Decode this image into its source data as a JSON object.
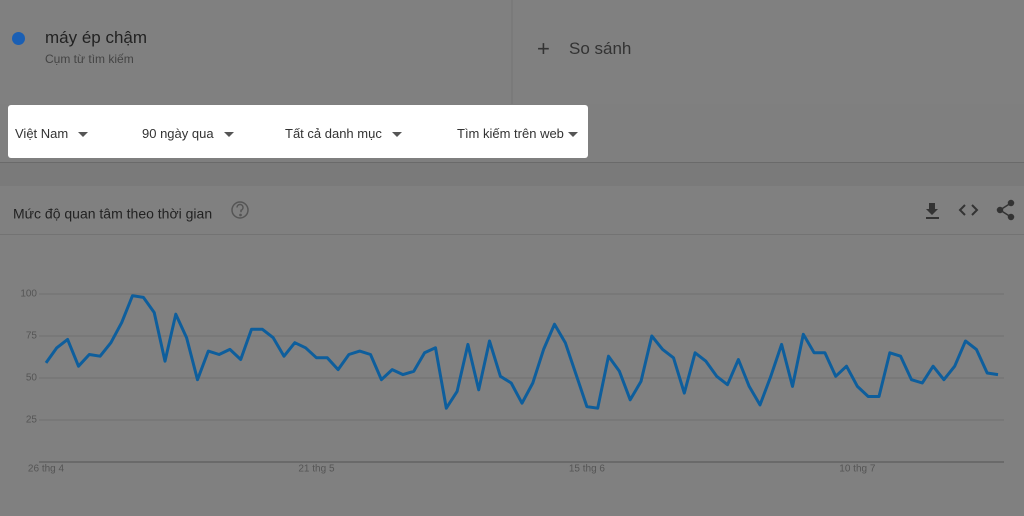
{
  "search": {
    "subtitle": "Cụm từ tìm kiếm",
    "compare": "So sánh"
  },
  "filters": [
    "Việt Nam",
    "90 ngày qua",
    "Tất cả danh mục",
    "Tìm kiếm trên web"
  ],
  "chart_data": {
    "type": "line",
    "title": "Mức độ quan tâm theo thời gian",
    "categories": [
      "26 thg 4",
      null,
      null,
      null,
      null,
      null,
      null,
      null,
      null,
      null,
      null,
      null,
      null,
      null,
      null,
      null,
      null,
      null,
      null,
      null,
      null,
      null,
      null,
      null,
      null,
      "21 thg 5",
      null,
      null,
      null,
      null,
      null,
      null,
      null,
      null,
      null,
      null,
      null,
      null,
      null,
      null,
      null,
      null,
      null,
      null,
      null,
      null,
      null,
      null,
      null,
      null,
      "15 thg 6",
      null,
      null,
      null,
      null,
      null,
      null,
      null,
      null,
      null,
      null,
      null,
      null,
      null,
      null,
      null,
      null,
      null,
      null,
      null,
      null,
      null,
      null,
      null,
      null,
      "10 thg 7",
      null,
      null,
      null,
      null,
      null,
      null,
      null,
      null,
      null,
      null,
      null,
      null,
      null
    ],
    "series": [
      {
        "name": "máy ép chậm",
        "color": "#0e5e9c",
        "values": [
          59,
          68,
          73,
          57,
          64,
          63,
          71,
          83,
          99,
          98,
          89,
          60,
          88,
          74,
          49,
          66,
          64,
          67,
          61,
          79,
          79,
          74,
          63,
          71,
          68,
          62,
          62,
          55,
          64,
          66,
          64,
          49,
          55,
          52,
          54,
          65,
          68,
          32,
          42,
          70,
          43,
          72,
          51,
          47,
          35,
          47,
          67,
          82,
          71,
          52,
          33,
          32,
          63,
          54,
          37,
          48,
          75,
          67,
          62,
          41,
          65,
          60,
          51,
          46,
          61,
          45,
          34,
          51,
          70,
          45,
          76,
          65,
          65,
          51,
          57,
          45,
          39,
          39,
          65,
          63,
          49,
          47,
          57,
          49,
          57,
          72,
          67,
          53,
          52
        ]
      }
    ],
    "ylim": [
      0,
      100
    ],
    "yticks": [
      25,
      50,
      75,
      100
    ],
    "grid": true
  }
}
